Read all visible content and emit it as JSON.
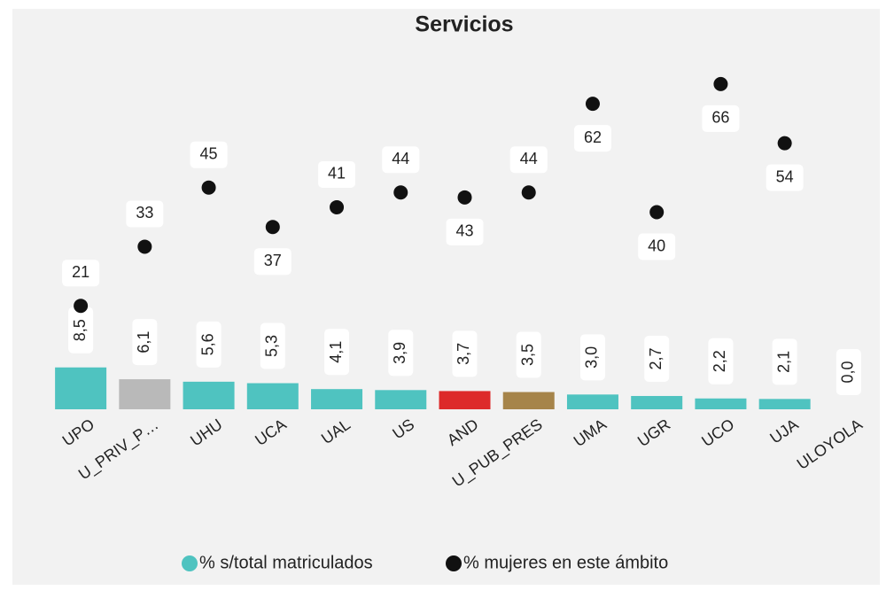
{
  "chart_data": {
    "type": "bar",
    "title": "Servicios",
    "categories": [
      "UPO",
      "U_PRIV_P…",
      "UHU",
      "UCA",
      "UAL",
      "US",
      "AND",
      "U_PUB_PRES",
      "UMA",
      "UGR",
      "UCO",
      "UJA",
      "ULOYOLA"
    ],
    "series": [
      {
        "name": "% s/total matriculados",
        "type": "bar",
        "color": "#4fc3c0",
        "colors": [
          "#4fc3c0",
          "#b9b9b9",
          "#4fc3c0",
          "#4fc3c0",
          "#4fc3c0",
          "#4fc3c0",
          "#dd2a2a",
          "#a6844a",
          "#4fc3c0",
          "#4fc3c0",
          "#4fc3c0",
          "#4fc3c0",
          "#4fc3c0"
        ],
        "values": [
          8.5,
          6.1,
          5.6,
          5.3,
          4.1,
          3.9,
          3.7,
          3.5,
          3.0,
          2.7,
          2.2,
          2.1,
          0.0
        ],
        "value_labels": [
          "8,5",
          "6,1",
          "5,6",
          "5,3",
          "4,1",
          "3,9",
          "3,7",
          "3,5",
          "3,0",
          "2,7",
          "2,2",
          "2,1",
          "0,0"
        ]
      },
      {
        "name": "% mujeres en este ámbito",
        "type": "scatter",
        "color": "#111111",
        "axis": "y2",
        "values": [
          21,
          33,
          45,
          37,
          41,
          44,
          43,
          44,
          62,
          40,
          66,
          54,
          null
        ]
      }
    ],
    "ylim": [
      0,
      80
    ],
    "y2lim": [
      0,
      80
    ],
    "legend": "bottom"
  }
}
